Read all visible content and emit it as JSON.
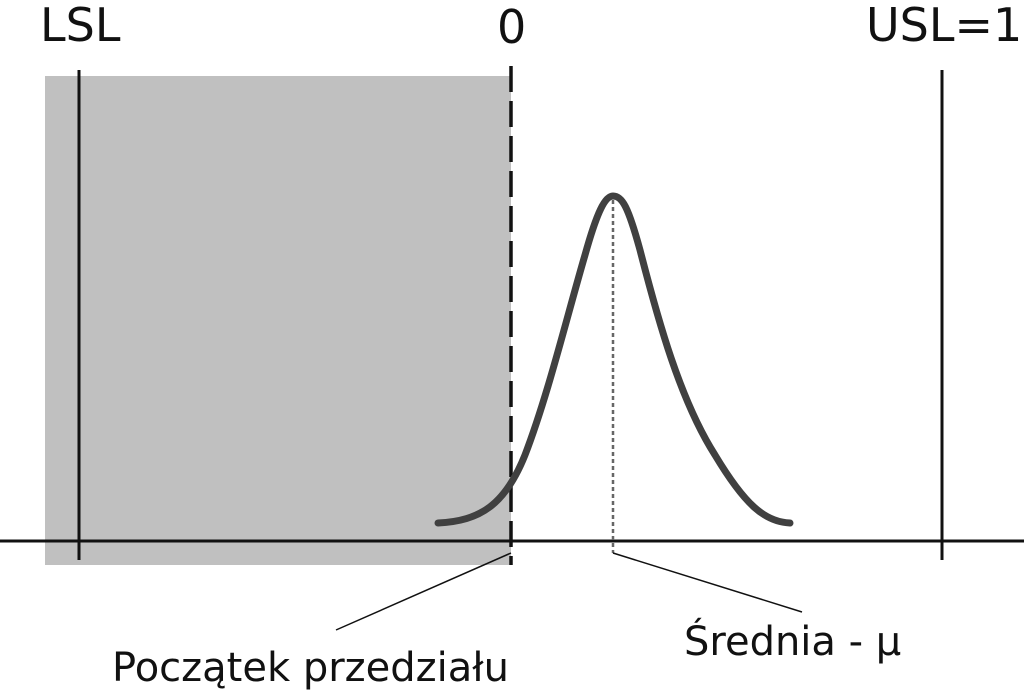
{
  "labels": {
    "lsl": "LSL",
    "zero": "0",
    "usl": "USL=1",
    "interval_start": "Początek przedziału",
    "mean": "Średnia - μ"
  },
  "colors": {
    "shaded_region": "#c0c0c0",
    "curve": "#404040",
    "lines": "#111111",
    "background": "#ffffff"
  }
}
